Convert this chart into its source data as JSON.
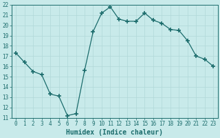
{
  "x": [
    0,
    1,
    2,
    3,
    4,
    5,
    6,
    7,
    8,
    9,
    10,
    11,
    12,
    13,
    14,
    15,
    16,
    17,
    18,
    19,
    20,
    21,
    22,
    23
  ],
  "y": [
    17.3,
    16.4,
    15.5,
    15.2,
    13.3,
    13.1,
    11.2,
    11.4,
    15.6,
    19.4,
    21.2,
    21.8,
    20.6,
    20.4,
    20.4,
    21.2,
    20.5,
    20.2,
    19.6,
    19.5,
    18.5,
    17.0,
    16.7,
    16.0
  ],
  "line_color": "#1a6b6b",
  "marker": "+",
  "marker_size": 4,
  "marker_linewidth": 1.2,
  "bg_color": "#c8eaea",
  "grid_color": "#b0d8d8",
  "xlabel": "Humidex (Indice chaleur)",
  "ylim": [
    11,
    22
  ],
  "xlim": [
    -0.5,
    23.5
  ],
  "yticks": [
    11,
    12,
    13,
    14,
    15,
    16,
    17,
    18,
    19,
    20,
    21,
    22
  ],
  "xticks": [
    0,
    1,
    2,
    3,
    4,
    5,
    6,
    7,
    8,
    9,
    10,
    11,
    12,
    13,
    14,
    15,
    16,
    17,
    18,
    19,
    20,
    21,
    22,
    23
  ],
  "tick_color": "#1a6b6b",
  "label_color": "#1a6b6b",
  "xlabel_fontsize": 7,
  "tick_fontsize": 5.5,
  "linewidth": 0.9
}
